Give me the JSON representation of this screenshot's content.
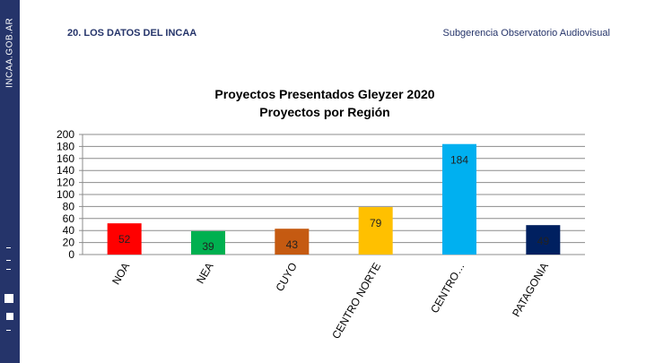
{
  "header": {
    "section_title": "20. LOS DATOS DEL INCAA",
    "department": "Subgerencia Observatorio Audiovisual",
    "brand": "INCAA.GOB.AR"
  },
  "chart_data": {
    "type": "bar",
    "title": "Proyectos Presentados Gleyzer 2020",
    "subtitle": "Proyectos por Región",
    "categories": [
      "NOA",
      "NEA",
      "CUYO",
      "CENTRO NORTE",
      "CENTRO…",
      "PATAGONIA"
    ],
    "values": [
      52,
      39,
      43,
      79,
      184,
      49
    ],
    "colors": [
      "#ff0000",
      "#00b050",
      "#c55a11",
      "#ffc000",
      "#00b0f0",
      "#002060"
    ],
    "xlabel": "",
    "ylabel": "",
    "ylim": [
      0,
      200
    ],
    "yticks": [
      0,
      20,
      40,
      60,
      80,
      100,
      120,
      140,
      160,
      180,
      200
    ],
    "grid": true,
    "legend": "none"
  }
}
